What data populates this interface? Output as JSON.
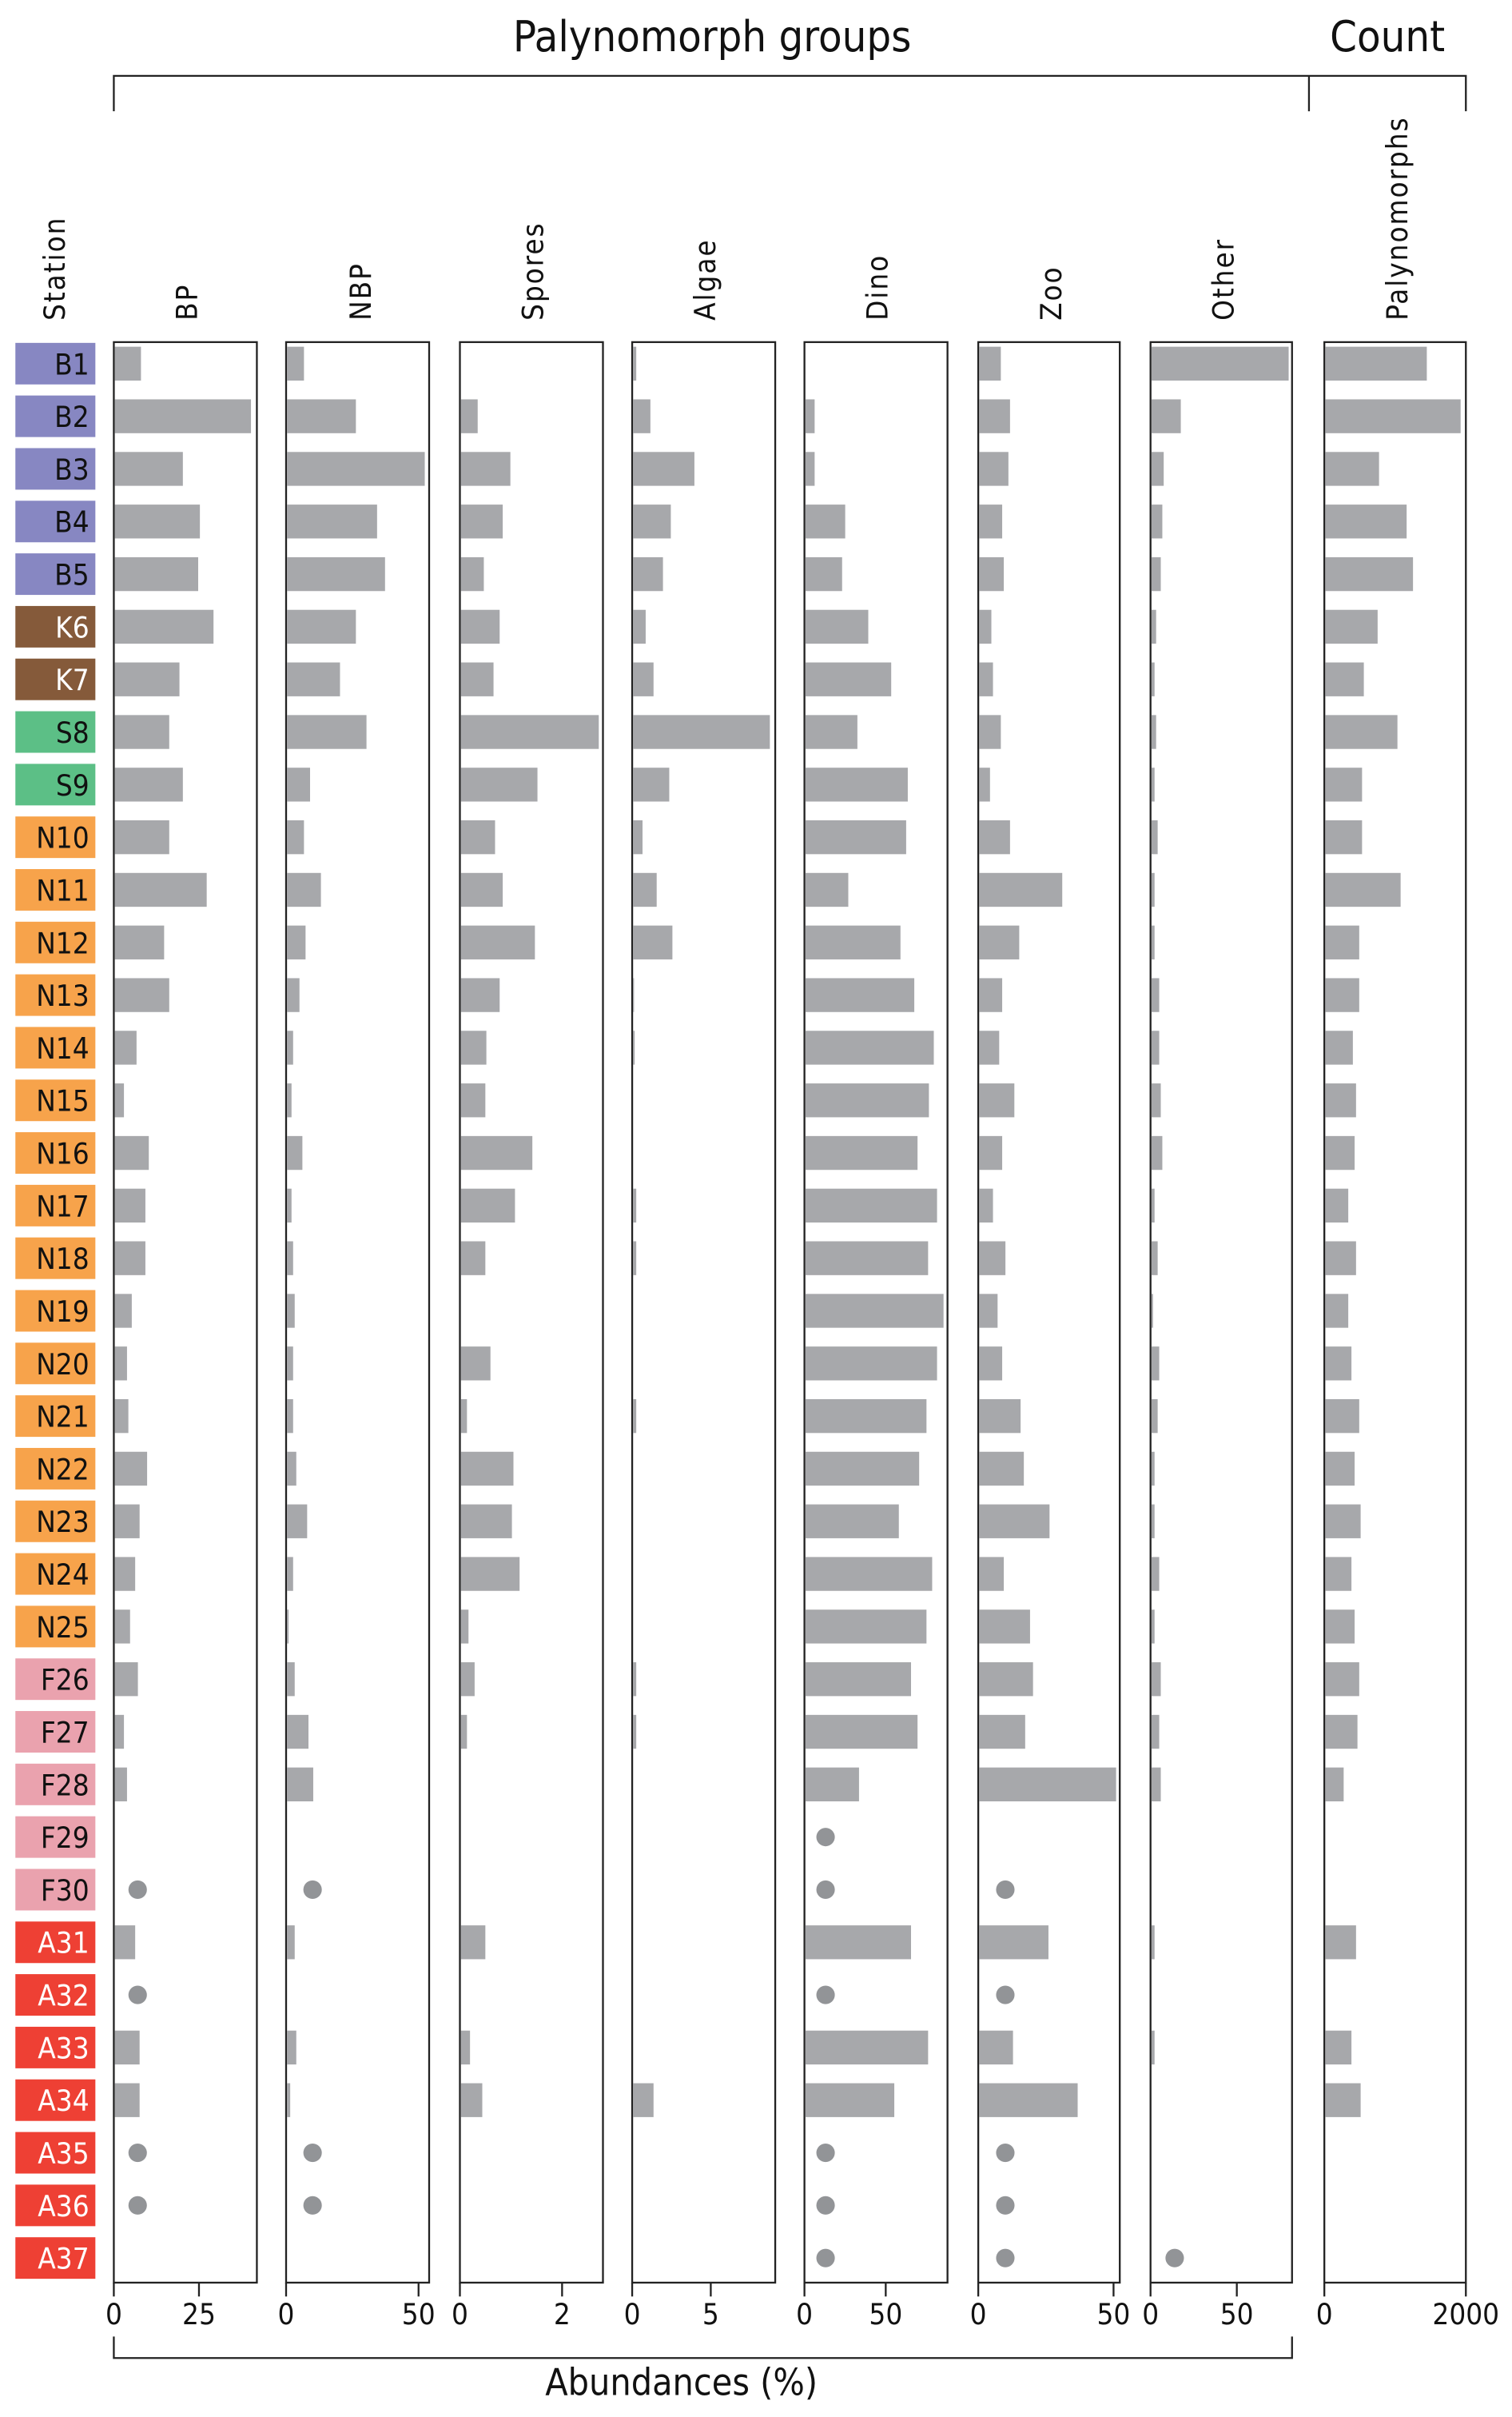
{
  "chart_data": {
    "type": "bar",
    "title": "Palynomorph groups",
    "count_title": "Count",
    "xlabel": "Abundances (%)",
    "station_label": "Station",
    "group_colors": {
      "B": {
        "fill": "#8787c2",
        "text": "#111111"
      },
      "K": {
        "fill": "#855a3a",
        "text": "#ffffff"
      },
      "S": {
        "fill": "#5cbf86",
        "text": "#111111"
      },
      "N": {
        "fill": "#f7a34b",
        "text": "#111111"
      },
      "F": {
        "fill": "#eaa2ae",
        "text": "#111111"
      },
      "A": {
        "fill": "#ee4034",
        "text": "#ffffff"
      }
    },
    "bar_color": "#a7a8ab",
    "dot_color": "#929497",
    "stations": [
      "B1",
      "B2",
      "B3",
      "B4",
      "B5",
      "K6",
      "K7",
      "S8",
      "S9",
      "N10",
      "N11",
      "N12",
      "N13",
      "N14",
      "N15",
      "N16",
      "N17",
      "N18",
      "N19",
      "N20",
      "N21",
      "N22",
      "N23",
      "N24",
      "N25",
      "F26",
      "F27",
      "F28",
      "F29",
      "F30",
      "A31",
      "A32",
      "A33",
      "A34",
      "A35",
      "A36",
      "A37"
    ],
    "panels": [
      {
        "name": "BP",
        "xlim": [
          0,
          42
        ],
        "ticks": [
          "0",
          "25"
        ],
        "tick_values": [
          0,
          25
        ],
        "values": [
          7.7,
          40,
          20,
          25,
          24.5,
          29,
          19,
          16,
          20,
          16,
          27,
          14.5,
          16,
          6.4,
          2.7,
          10,
          9,
          9,
          5,
          3.6,
          4,
          9.5,
          7.3,
          6,
          4.5,
          6.8,
          2.7,
          3.6,
          null,
          null,
          6,
          null,
          7.3,
          7.3,
          null,
          null,
          null
        ],
        "dots": [
          "F30",
          "A32",
          "A35",
          "A36"
        ],
        "dot_value": 7
      },
      {
        "name": "NBP",
        "xlim": [
          0,
          54
        ],
        "ticks": [
          "0",
          "50"
        ],
        "tick_values": [
          0,
          50
        ],
        "values": [
          6.4,
          26,
          52,
          34,
          37,
          26,
          20,
          30,
          8.7,
          6.4,
          12.8,
          7,
          4.7,
          2.3,
          1.7,
          5.8,
          1.7,
          2.3,
          2.9,
          2.3,
          2.3,
          3.5,
          7.6,
          2.3,
          0.6,
          2.9,
          8.1,
          9.9,
          null,
          null,
          2.9,
          null,
          3.5,
          1.2,
          null,
          null,
          null
        ],
        "dots": [
          "F30",
          "A35",
          "A36"
        ],
        "dot_value": 10
      },
      {
        "name": "Spores",
        "xlim": [
          0,
          2.8
        ],
        "ticks": [
          "0",
          "2"
        ],
        "tick_values": [
          0,
          2
        ],
        "values": [
          null,
          0.33,
          0.97,
          0.82,
          0.45,
          0.76,
          0.64,
          2.7,
          1.5,
          0.67,
          0.82,
          1.45,
          0.76,
          0.5,
          0.48,
          1.4,
          1.06,
          0.48,
          null,
          0.58,
          0.12,
          1.03,
          1.0,
          1.15,
          0.15,
          0.27,
          0.12,
          null,
          null,
          null,
          0.48,
          null,
          0.18,
          0.42,
          null,
          null,
          null
        ],
        "dots": [],
        "dot_value": 0
      },
      {
        "name": "Algae",
        "xlim": [
          0,
          9.1
        ],
        "ticks": [
          "0",
          "5"
        ],
        "tick_values": [
          0,
          5
        ],
        "values": [
          0.2,
          1.1,
          3.9,
          2.4,
          1.9,
          0.8,
          1.3,
          8.7,
          2.3,
          0.6,
          1.5,
          2.5,
          0.05,
          0.1,
          null,
          null,
          0.2,
          0.2,
          null,
          null,
          0.2,
          null,
          null,
          null,
          null,
          0.2,
          0.2,
          null,
          null,
          null,
          null,
          null,
          null,
          1.3,
          null,
          null,
          null
        ],
        "dots": [],
        "dot_value": 0
      },
      {
        "name": "Dino",
        "xlim": [
          0,
          88
        ],
        "ticks": [
          "0",
          "50"
        ],
        "tick_values": [
          0,
          50
        ],
        "values": [
          null,
          5.7,
          5.7,
          24.5,
          22.6,
          38.7,
          52.8,
          32,
          63,
          62,
          26.4,
          58.5,
          67,
          79,
          76,
          69,
          81,
          75.5,
          85,
          81,
          74.5,
          70,
          57.5,
          78,
          74.5,
          65,
          69,
          33,
          null,
          null,
          65,
          null,
          75.5,
          54.7,
          null,
          null,
          null
        ],
        "dots": [
          "F29",
          "F30",
          "A32",
          "A35",
          "A36",
          "A37"
        ],
        "dot_value": 13
      },
      {
        "name": "Zoo",
        "xlim": [
          0,
          52.3
        ],
        "ticks": [
          "0",
          "50"
        ],
        "tick_values": [
          0,
          50
        ],
        "values": [
          8,
          11.4,
          10.8,
          8.5,
          9.1,
          4.5,
          5.1,
          8,
          4,
          11.4,
          30.7,
          14.8,
          8.5,
          7.4,
          13,
          8.5,
          5.1,
          9.7,
          6.8,
          8.5,
          15.3,
          16.5,
          26,
          9.1,
          18.8,
          19.9,
          17,
          50.6,
          null,
          null,
          25.6,
          null,
          12.5,
          36.4,
          null,
          null,
          null
        ],
        "dots": [
          "F30",
          "A32",
          "A35",
          "A36",
          "A37"
        ],
        "dot_value": 10
      },
      {
        "name": "Other",
        "xlim": [
          0,
          82
        ],
        "ticks": [
          "0",
          "50"
        ],
        "tick_values": [
          0,
          50
        ],
        "values": [
          79.5,
          17,
          7.1,
          6.3,
          5.4,
          2.7,
          1.8,
          2.7,
          1.8,
          3.6,
          1.8,
          1.8,
          4.5,
          4.5,
          5.4,
          6.3,
          1.8,
          3.6,
          0.9,
          4.5,
          3.6,
          1.8,
          1.8,
          4.5,
          1.8,
          5.4,
          4.5,
          5.4,
          null,
          null,
          1.8,
          null,
          1.8,
          null,
          null,
          null,
          null
        ],
        "dots": [
          "A37"
        ],
        "dot_value": 14
      },
      {
        "name": "Palynomorphs",
        "xlim": [
          0,
          2000
        ],
        "ticks": [
          "0",
          "2000"
        ],
        "tick_values": [
          0,
          2000
        ],
        "values": [
          1435,
          1913,
          760,
          1150,
          1240,
          740,
          545,
          1020,
          520,
          520,
          1065,
          480,
          480,
          390,
          435,
          415,
          325,
          435,
          325,
          370,
          480,
          415,
          500,
          370,
          415,
          480,
          455,
          260,
          null,
          null,
          435,
          null,
          370,
          500,
          null,
          null,
          null
        ],
        "dots": [],
        "dot_value": 0
      }
    ]
  }
}
